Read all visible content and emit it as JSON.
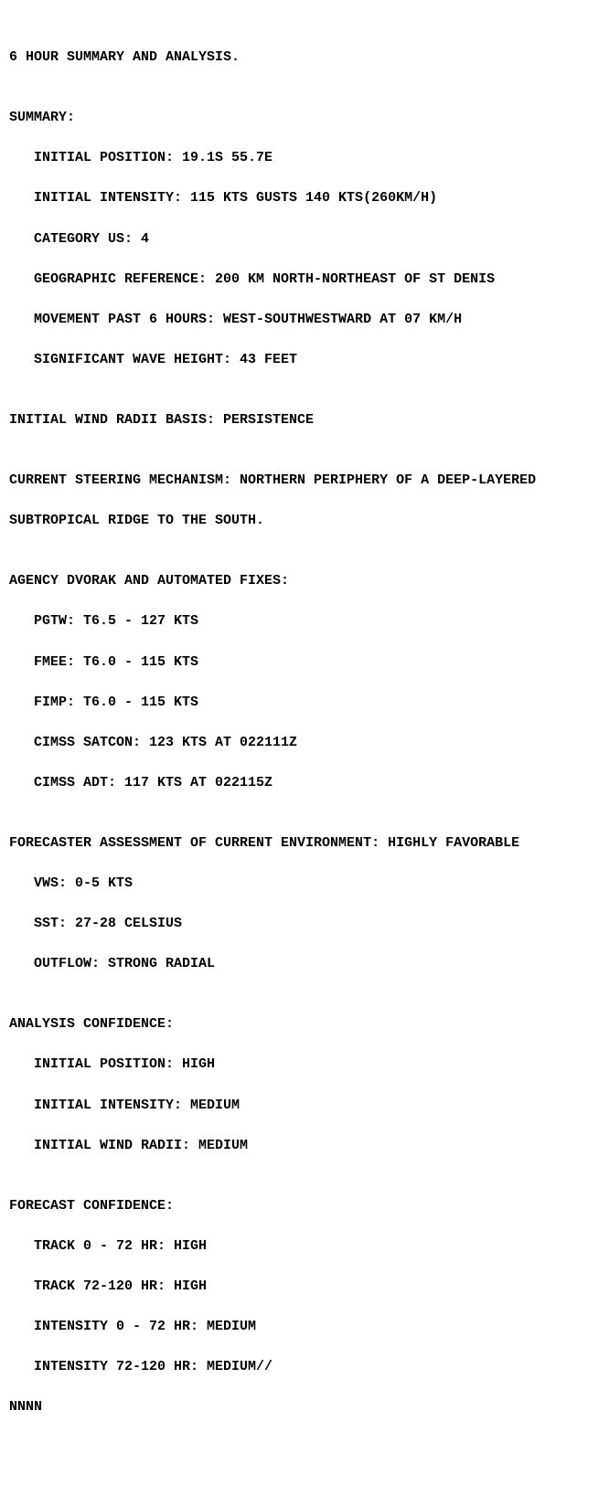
{
  "header": "6 HOUR SUMMARY AND ANALYSIS.",
  "blank": "",
  "summary": {
    "title": "SUMMARY:",
    "initial_position": "   INITIAL POSITION: 19.1S 55.7E",
    "initial_intensity": "   INITIAL INTENSITY: 115 KTS GUSTS 140 KTS(260KM/H)",
    "category": "   CATEGORY US: 4",
    "geo_ref": "   GEOGRAPHIC REFERENCE: 200 KM NORTH-NORTHEAST OF ST DENIS",
    "movement": "   MOVEMENT PAST 6 HOURS: WEST-SOUTHWESTWARD AT 07 KM/H",
    "wave_height": "   SIGNIFICANT WAVE HEIGHT: 43 FEET"
  },
  "wind_radii": "INITIAL WIND RADII BASIS: PERSISTENCE",
  "steering": {
    "line1": "CURRENT STEERING MECHANISM: NORTHERN PERIPHERY OF A DEEP-LAYERED",
    "line2": "SUBTROPICAL RIDGE TO THE SOUTH."
  },
  "dvorak": {
    "title": "AGENCY DVORAK AND AUTOMATED FIXES:",
    "pgtw": "   PGTW: T6.5 - 127 KTS",
    "fmee": "   FMEE: T6.0 - 115 KTS",
    "fimp": "   FIMP: T6.0 - 115 KTS",
    "satcon": "   CIMSS SATCON: 123 KTS AT 022111Z",
    "adt": "   CIMSS ADT: 117 KTS AT 022115Z"
  },
  "env": {
    "title": "FORECASTER ASSESSMENT OF CURRENT ENVIRONMENT: HIGHLY FAVORABLE",
    "vws": "   VWS: 0-5 KTS",
    "sst": "   SST: 27-28 CELSIUS",
    "outflow": "   OUTFLOW: STRONG RADIAL"
  },
  "analysis_conf": {
    "title": "ANALYSIS CONFIDENCE:",
    "position": "   INITIAL POSITION: HIGH",
    "intensity": "   INITIAL INTENSITY: MEDIUM",
    "radii": "   INITIAL WIND RADII: MEDIUM"
  },
  "forecast_conf": {
    "title": "FORECAST CONFIDENCE:",
    "track_0_72": "   TRACK 0 - 72 HR: HIGH",
    "track_72_120": "   TRACK 72-120 HR: HIGH",
    "int_0_72": "   INTENSITY 0 - 72 HR: MEDIUM",
    "int_72_120": "   INTENSITY 72-120 HR: MEDIUM//"
  },
  "terminator": "NNNN"
}
